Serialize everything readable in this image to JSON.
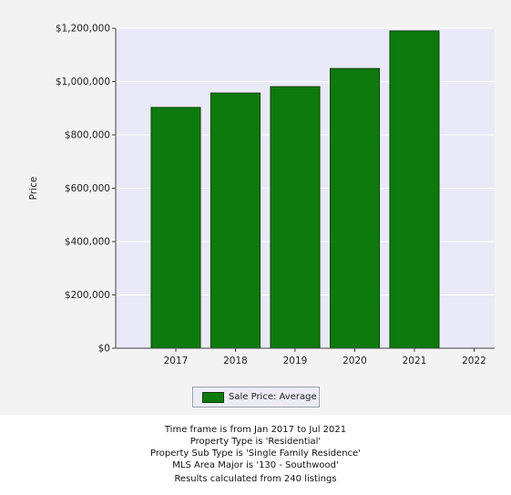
{
  "chart_data": {
    "type": "bar",
    "title": "",
    "xlabel": "",
    "ylabel": "Price",
    "categories": [
      "2017",
      "2018",
      "2019",
      "2020",
      "2021"
    ],
    "x_ticks": [
      "2017",
      "2018",
      "2019",
      "2020",
      "2021",
      "2022"
    ],
    "series": [
      {
        "name": "Sale Price: Average",
        "values": [
          903000,
          957000,
          981000,
          1049000,
          1190000
        ]
      }
    ],
    "ylim": [
      0,
      1200000
    ],
    "y_ticks": [
      "$0",
      "$200,000",
      "$400,000",
      "$600,000",
      "$800,000",
      "$1,000,000",
      "$1,200,000"
    ],
    "grid": true,
    "legend_position": "bottom",
    "colors": {
      "bar": "#0c7a0c",
      "bar_edge": "#053f05",
      "plot_background": "#e9e9f8"
    }
  },
  "footer": {
    "line1": "Time frame is from Jan 2017 to Jul 2021",
    "line2": "Property Type is 'Residential'",
    "line3": "Property Sub Type is 'Single Family Residence'",
    "line4": "MLS Area Major is '130 - Southwood'",
    "results": "Results calculated from 240 listings"
  }
}
